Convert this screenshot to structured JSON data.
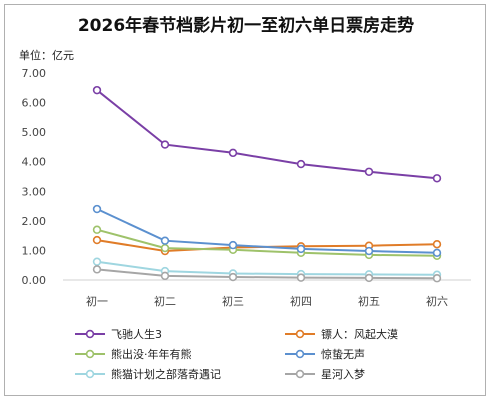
{
  "chart_data": {
    "type": "line",
    "title": "2026年春节档影片初一至初六单日票房走势",
    "unit_label": "单位：亿元",
    "categories": [
      "初一",
      "初二",
      "初三",
      "初四",
      "初五",
      "初六"
    ],
    "ylim": [
      0,
      7
    ],
    "yticks": [
      "0.00",
      "1.00",
      "2.00",
      "3.00",
      "4.00",
      "5.00",
      "6.00",
      "7.00"
    ],
    "grid": false,
    "legend_position": "bottom",
    "series": [
      {
        "name": "飞驰人生3",
        "color": "#7a3fa6",
        "values": [
          6.42,
          4.58,
          4.3,
          3.92,
          3.66,
          3.44
        ]
      },
      {
        "name": "镖人：风起大漠",
        "color": "#e07c28",
        "values": [
          1.35,
          0.98,
          1.1,
          1.14,
          1.16,
          1.21
        ]
      },
      {
        "name": "熊出没·年年有熊",
        "color": "#9ec26a",
        "values": [
          1.7,
          1.08,
          1.02,
          0.92,
          0.85,
          0.82
        ]
      },
      {
        "name": "惊蛰无声",
        "color": "#5b90cf",
        "values": [
          2.4,
          1.33,
          1.18,
          1.05,
          0.98,
          0.92
        ]
      },
      {
        "name": "熊猫计划之部落奇遇记",
        "color": "#9fd6e0",
        "values": [
          0.62,
          0.3,
          0.22,
          0.2,
          0.19,
          0.18
        ]
      },
      {
        "name": "星河入梦",
        "color": "#a6a6a6",
        "values": [
          0.36,
          0.14,
          0.1,
          0.08,
          0.07,
          0.06
        ]
      }
    ]
  }
}
